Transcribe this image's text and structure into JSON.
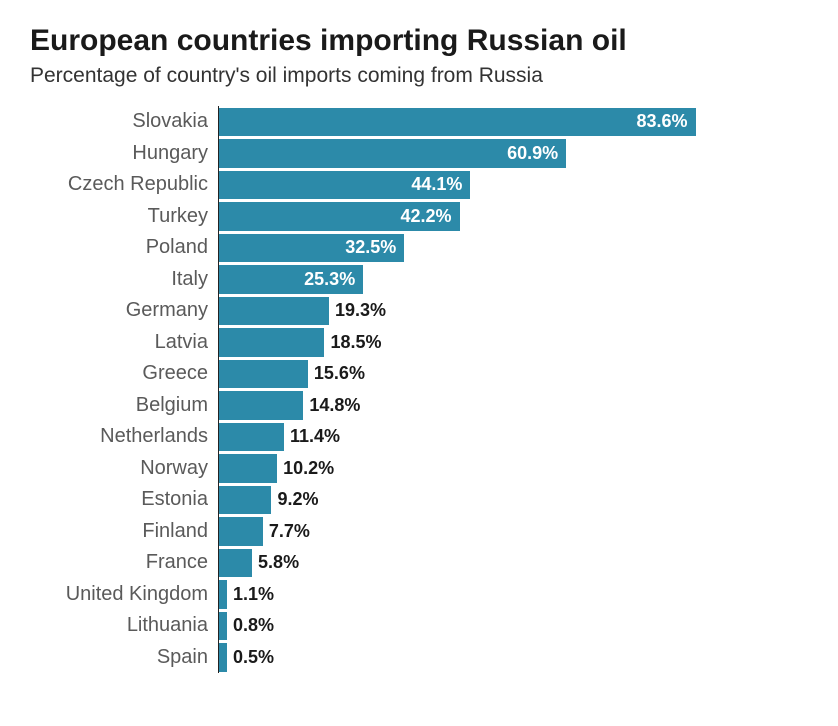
{
  "title": "European countries importing Russian oil",
  "subtitle": "Percentage of country's oil imports coming from Russia",
  "chart": {
    "type": "bar-horizontal",
    "bar_color": "#2c8aa9",
    "axis_color": "#222222",
    "label_color": "#5a5a5a",
    "value_color_inside": "#ffffff",
    "value_color_outside": "#1a1a1a",
    "background_color": "#ffffff",
    "xmax": 100,
    "label_fontsize": 20,
    "value_fontsize": 18,
    "value_fontweight": 700,
    "inside_threshold_pct": 20,
    "data": [
      {
        "country": "Slovakia",
        "value": 83.6,
        "display": "83.6%"
      },
      {
        "country": "Hungary",
        "value": 60.9,
        "display": "60.9%"
      },
      {
        "country": "Czech Republic",
        "value": 44.1,
        "display": "44.1%"
      },
      {
        "country": "Turkey",
        "value": 42.2,
        "display": "42.2%"
      },
      {
        "country": "Poland",
        "value": 32.5,
        "display": "32.5%"
      },
      {
        "country": "Italy",
        "value": 25.3,
        "display": "25.3%"
      },
      {
        "country": "Germany",
        "value": 19.3,
        "display": "19.3%"
      },
      {
        "country": "Latvia",
        "value": 18.5,
        "display": "18.5%"
      },
      {
        "country": "Greece",
        "value": 15.6,
        "display": "15.6%"
      },
      {
        "country": "Belgium",
        "value": 14.8,
        "display": "14.8%"
      },
      {
        "country": "Netherlands",
        "value": 11.4,
        "display": "11.4%"
      },
      {
        "country": "Norway",
        "value": 10.2,
        "display": "10.2%"
      },
      {
        "country": "Estonia",
        "value": 9.2,
        "display": "9.2%"
      },
      {
        "country": "Finland",
        "value": 7.7,
        "display": "7.7%"
      },
      {
        "country": "France",
        "value": 5.8,
        "display": "5.8%"
      },
      {
        "country": "United Kingdom",
        "value": 1.1,
        "display": "1.1%"
      },
      {
        "country": "Lithuania",
        "value": 0.8,
        "display": "0.8%"
      },
      {
        "country": "Spain",
        "value": 0.5,
        "display": "0.5%"
      }
    ]
  }
}
